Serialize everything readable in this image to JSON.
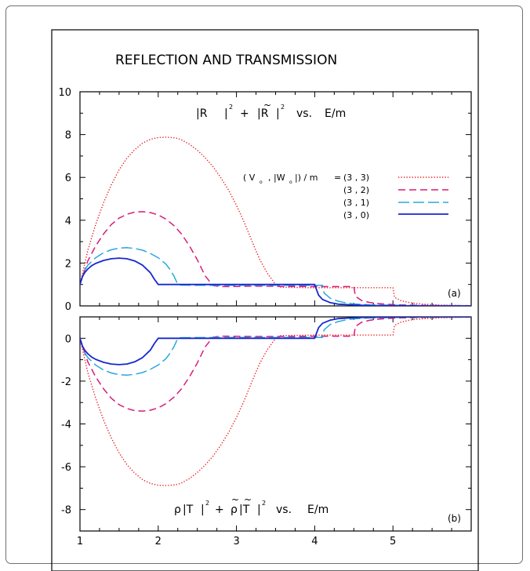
{
  "figure": {
    "title": "REFLECTION AND TRANSMISSION",
    "legend_header_a": "( V",
    "legend_header_sub": "o",
    "legend_header_b": ", |W",
    "legend_header_c": "|) / m",
    "legend_header_eq": "=",
    "legend_entries": [
      "(3 , 3)",
      "(3 , 2)",
      "(3 , 1)",
      "(3 , 0)"
    ]
  },
  "chart_data": [
    {
      "id": "panel-a",
      "type": "line",
      "title": "|R|² + |R̃|²  vs.  E/m",
      "title_parts": {
        "t1": "|R",
        "t2": "|",
        "sup1": "2",
        "t3": "+",
        "t4": "|R",
        "tilde": "~",
        "t5": "|",
        "sup2": "2",
        "t6": "vs.",
        "t7": "E/m"
      },
      "panel_label": "(a)",
      "xlabel": "",
      "ylabel": "",
      "xlim": [
        1,
        6
      ],
      "ylim": [
        0,
        10
      ],
      "x_ticks": [],
      "y_ticks": [
        0,
        2,
        4,
        6,
        8,
        10
      ],
      "legend_position": "upper-right",
      "grid": false,
      "series": [
        {
          "name": "(3 , 3)",
          "color": "#e8191e",
          "dash": "1.3 2.2",
          "width": 1.4,
          "x": [
            1,
            1.1,
            1.2,
            1.3,
            1.4,
            1.5,
            1.6,
            1.7,
            1.8,
            1.9,
            2.0,
            2.1,
            2.2,
            2.25,
            2.3,
            2.4,
            2.5,
            2.6,
            2.7,
            2.8,
            2.9,
            3.0,
            3.1,
            3.2,
            3.3,
            3.4,
            3.5,
            3.55,
            3.6,
            3.7,
            3.8,
            3.9,
            4.0,
            4.1,
            4.2,
            4.3,
            4.4,
            4.5,
            4.6,
            4.7,
            4.8,
            4.9,
            5.0,
            5.02,
            5.1,
            5.2,
            5.3,
            5.4,
            5.5,
            5.6,
            5.8,
            6.0
          ],
          "y": [
            1.0,
            2.6,
            3.8,
            4.8,
            5.65,
            6.35,
            6.9,
            7.3,
            7.6,
            7.78,
            7.86,
            7.88,
            7.85,
            7.82,
            7.75,
            7.55,
            7.27,
            6.92,
            6.5,
            5.99,
            5.4,
            4.7,
            3.9,
            3.0,
            2.15,
            1.5,
            1.0,
            0.88,
            0.87,
            0.86,
            0.86,
            0.85,
            0.85,
            0.85,
            0.85,
            0.85,
            0.85,
            0.85,
            0.85,
            0.85,
            0.85,
            0.85,
            0.85,
            0.4,
            0.25,
            0.16,
            0.11,
            0.08,
            0.06,
            0.04,
            0.02,
            0.01
          ]
        },
        {
          "name": "(3 , 2)",
          "color": "#d81b7a",
          "dash": "9 5",
          "width": 1.5,
          "x": [
            1,
            1.1,
            1.2,
            1.3,
            1.4,
            1.5,
            1.6,
            1.7,
            1.8,
            1.9,
            2.0,
            2.1,
            2.2,
            2.3,
            2.4,
            2.5,
            2.6,
            2.7,
            2.8,
            2.85,
            3.0,
            3.2,
            3.4,
            3.6,
            3.8,
            4.0,
            4.2,
            4.4,
            4.5,
            4.52,
            4.6,
            4.7,
            4.8,
            5.0,
            5.2,
            5.5,
            6.0
          ],
          "y": [
            1.0,
            2.1,
            2.8,
            3.35,
            3.8,
            4.1,
            4.28,
            4.38,
            4.4,
            4.36,
            4.25,
            4.05,
            3.75,
            3.35,
            2.8,
            2.15,
            1.4,
            0.95,
            0.9,
            0.9,
            0.91,
            0.92,
            0.92,
            0.91,
            0.91,
            0.9,
            0.9,
            0.9,
            0.9,
            0.45,
            0.25,
            0.16,
            0.11,
            0.06,
            0.04,
            0.02,
            0.01
          ]
        },
        {
          "name": "(3 , 1)",
          "color": "#2aa7de",
          "dash": "14 5",
          "width": 1.5,
          "x": [
            1,
            1.05,
            1.1,
            1.2,
            1.3,
            1.4,
            1.5,
            1.6,
            1.7,
            1.8,
            1.9,
            2.0,
            2.1,
            2.15,
            2.2,
            2.25,
            2.3,
            2.5,
            3.0,
            3.5,
            4.0,
            4.1,
            4.12,
            4.2,
            4.3,
            4.4,
            4.5,
            4.7,
            5.0,
            5.5,
            6.0
          ],
          "y": [
            1.0,
            1.6,
            1.9,
            2.25,
            2.48,
            2.62,
            2.7,
            2.72,
            2.68,
            2.6,
            2.45,
            2.25,
            1.95,
            1.7,
            1.4,
            1.0,
            0.97,
            0.96,
            0.96,
            0.96,
            0.96,
            0.96,
            0.6,
            0.35,
            0.22,
            0.14,
            0.09,
            0.05,
            0.03,
            0.01,
            0.0
          ]
        },
        {
          "name": "(3 , 0)",
          "color": "#1628cf",
          "dash": "",
          "width": 1.8,
          "x": [
            1,
            1.03,
            1.06,
            1.1,
            1.15,
            1.2,
            1.3,
            1.4,
            1.5,
            1.6,
            1.7,
            1.8,
            1.9,
            1.95,
            2.0,
            2.0,
            2.5,
            3.0,
            3.5,
            4.0,
            4.0,
            4.05,
            4.1,
            4.2,
            4.3,
            4.5,
            4.7,
            5.0,
            5.5,
            6.0
          ],
          "y": [
            1.0,
            1.35,
            1.55,
            1.72,
            1.88,
            1.98,
            2.12,
            2.2,
            2.23,
            2.2,
            2.1,
            1.9,
            1.55,
            1.25,
            1.0,
            1.0,
            1.0,
            1.0,
            1.0,
            1.0,
            0.98,
            0.5,
            0.3,
            0.15,
            0.08,
            0.04,
            0.02,
            0.01,
            0.0,
            0.0
          ]
        }
      ]
    },
    {
      "id": "panel-b",
      "type": "line",
      "title": "ρ|T|² + ρ̃|T̃|²  vs.  E/m",
      "title_parts": {
        "rho": "ρ",
        "t1": "|T",
        "t2": "|",
        "sup1": "2",
        "t3": "+",
        "rho2": "ρ",
        "tilde": "~",
        "t4": "|T",
        "t5": "|",
        "sup2": "2",
        "t6": "vs.",
        "t7": "E/m"
      },
      "panel_label": "(b)",
      "xlabel": "",
      "ylabel": "",
      "xlim": [
        1,
        6
      ],
      "ylim": [
        -9,
        1
      ],
      "x_ticks": [
        1,
        2,
        3,
        4,
        5
      ],
      "y_ticks": [
        0,
        -2,
        -4,
        -6,
        -8
      ],
      "grid": false,
      "series": [
        {
          "name": "(3 , 3)",
          "color": "#e8191e",
          "dash": "1.3 2.2",
          "width": 1.4,
          "x": [
            1,
            1.1,
            1.2,
            1.3,
            1.4,
            1.5,
            1.6,
            1.7,
            1.8,
            1.9,
            2.0,
            2.1,
            2.2,
            2.25,
            2.3,
            2.4,
            2.5,
            2.6,
            2.7,
            2.8,
            2.9,
            3.0,
            3.1,
            3.2,
            3.3,
            3.4,
            3.5,
            3.55,
            3.6,
            3.8,
            4.0,
            4.2,
            4.4,
            4.6,
            4.8,
            5.0,
            5.02,
            5.1,
            5.2,
            5.3,
            5.5,
            5.8,
            6.0
          ],
          "y": [
            0.0,
            -1.6,
            -2.8,
            -3.8,
            -4.65,
            -5.35,
            -5.9,
            -6.3,
            -6.6,
            -6.78,
            -6.86,
            -6.88,
            -6.85,
            -6.82,
            -6.75,
            -6.55,
            -6.27,
            -5.92,
            -5.5,
            -4.99,
            -4.4,
            -3.7,
            -2.9,
            -2.0,
            -1.15,
            -0.5,
            0.0,
            0.12,
            0.13,
            0.14,
            0.15,
            0.15,
            0.15,
            0.15,
            0.15,
            0.15,
            0.6,
            0.75,
            0.84,
            0.89,
            0.94,
            0.98,
            0.99
          ]
        },
        {
          "name": "(3 , 2)",
          "color": "#d81b7a",
          "dash": "9 5",
          "width": 1.5,
          "x": [
            1,
            1.1,
            1.2,
            1.3,
            1.4,
            1.5,
            1.6,
            1.7,
            1.8,
            1.9,
            2.0,
            2.1,
            2.2,
            2.3,
            2.4,
            2.5,
            2.6,
            2.7,
            2.8,
            2.85,
            3.0,
            3.4,
            3.8,
            4.2,
            4.5,
            4.52,
            4.6,
            4.7,
            4.8,
            5.0,
            5.5,
            6.0
          ],
          "y": [
            0.0,
            -1.1,
            -1.8,
            -2.35,
            -2.8,
            -3.1,
            -3.28,
            -3.38,
            -3.4,
            -3.36,
            -3.25,
            -3.05,
            -2.75,
            -2.35,
            -1.8,
            -1.15,
            -0.4,
            0.05,
            0.1,
            0.1,
            0.09,
            0.08,
            0.09,
            0.1,
            0.1,
            0.55,
            0.75,
            0.84,
            0.89,
            0.94,
            0.98,
            0.99
          ]
        },
        {
          "name": "(3 , 1)",
          "color": "#2aa7de",
          "dash": "14 5",
          "width": 1.5,
          "x": [
            1,
            1.05,
            1.1,
            1.2,
            1.3,
            1.4,
            1.5,
            1.6,
            1.7,
            1.8,
            1.9,
            2.0,
            2.1,
            2.15,
            2.2,
            2.25,
            2.3,
            3.0,
            4.0,
            4.1,
            4.12,
            4.2,
            4.3,
            4.4,
            4.5,
            4.7,
            5.0,
            5.5,
            6.0
          ],
          "y": [
            0.0,
            -0.6,
            -0.9,
            -1.25,
            -1.48,
            -1.62,
            -1.7,
            -1.72,
            -1.68,
            -1.6,
            -1.45,
            -1.25,
            -0.95,
            -0.7,
            -0.4,
            0.0,
            0.03,
            0.04,
            0.04,
            0.04,
            0.4,
            0.65,
            0.78,
            0.86,
            0.91,
            0.95,
            0.97,
            0.99,
            1.0
          ]
        },
        {
          "name": "(3 , 0)",
          "color": "#1628cf",
          "dash": "",
          "width": 1.8,
          "x": [
            1,
            1.03,
            1.06,
            1.1,
            1.15,
            1.2,
            1.3,
            1.4,
            1.5,
            1.6,
            1.7,
            1.8,
            1.9,
            1.95,
            2.0,
            2.0,
            3.0,
            4.0,
            4.0,
            4.05,
            4.1,
            4.2,
            4.3,
            4.5,
            4.7,
            5.0,
            5.5,
            6.0
          ],
          "y": [
            0.0,
            -0.35,
            -0.55,
            -0.72,
            -0.88,
            -0.98,
            -1.12,
            -1.2,
            -1.23,
            -1.2,
            -1.1,
            -0.9,
            -0.55,
            -0.25,
            0.0,
            0.0,
            0.0,
            0.0,
            0.02,
            0.5,
            0.7,
            0.85,
            0.92,
            0.96,
            0.98,
            0.99,
            1.0,
            1.0
          ]
        }
      ]
    }
  ]
}
